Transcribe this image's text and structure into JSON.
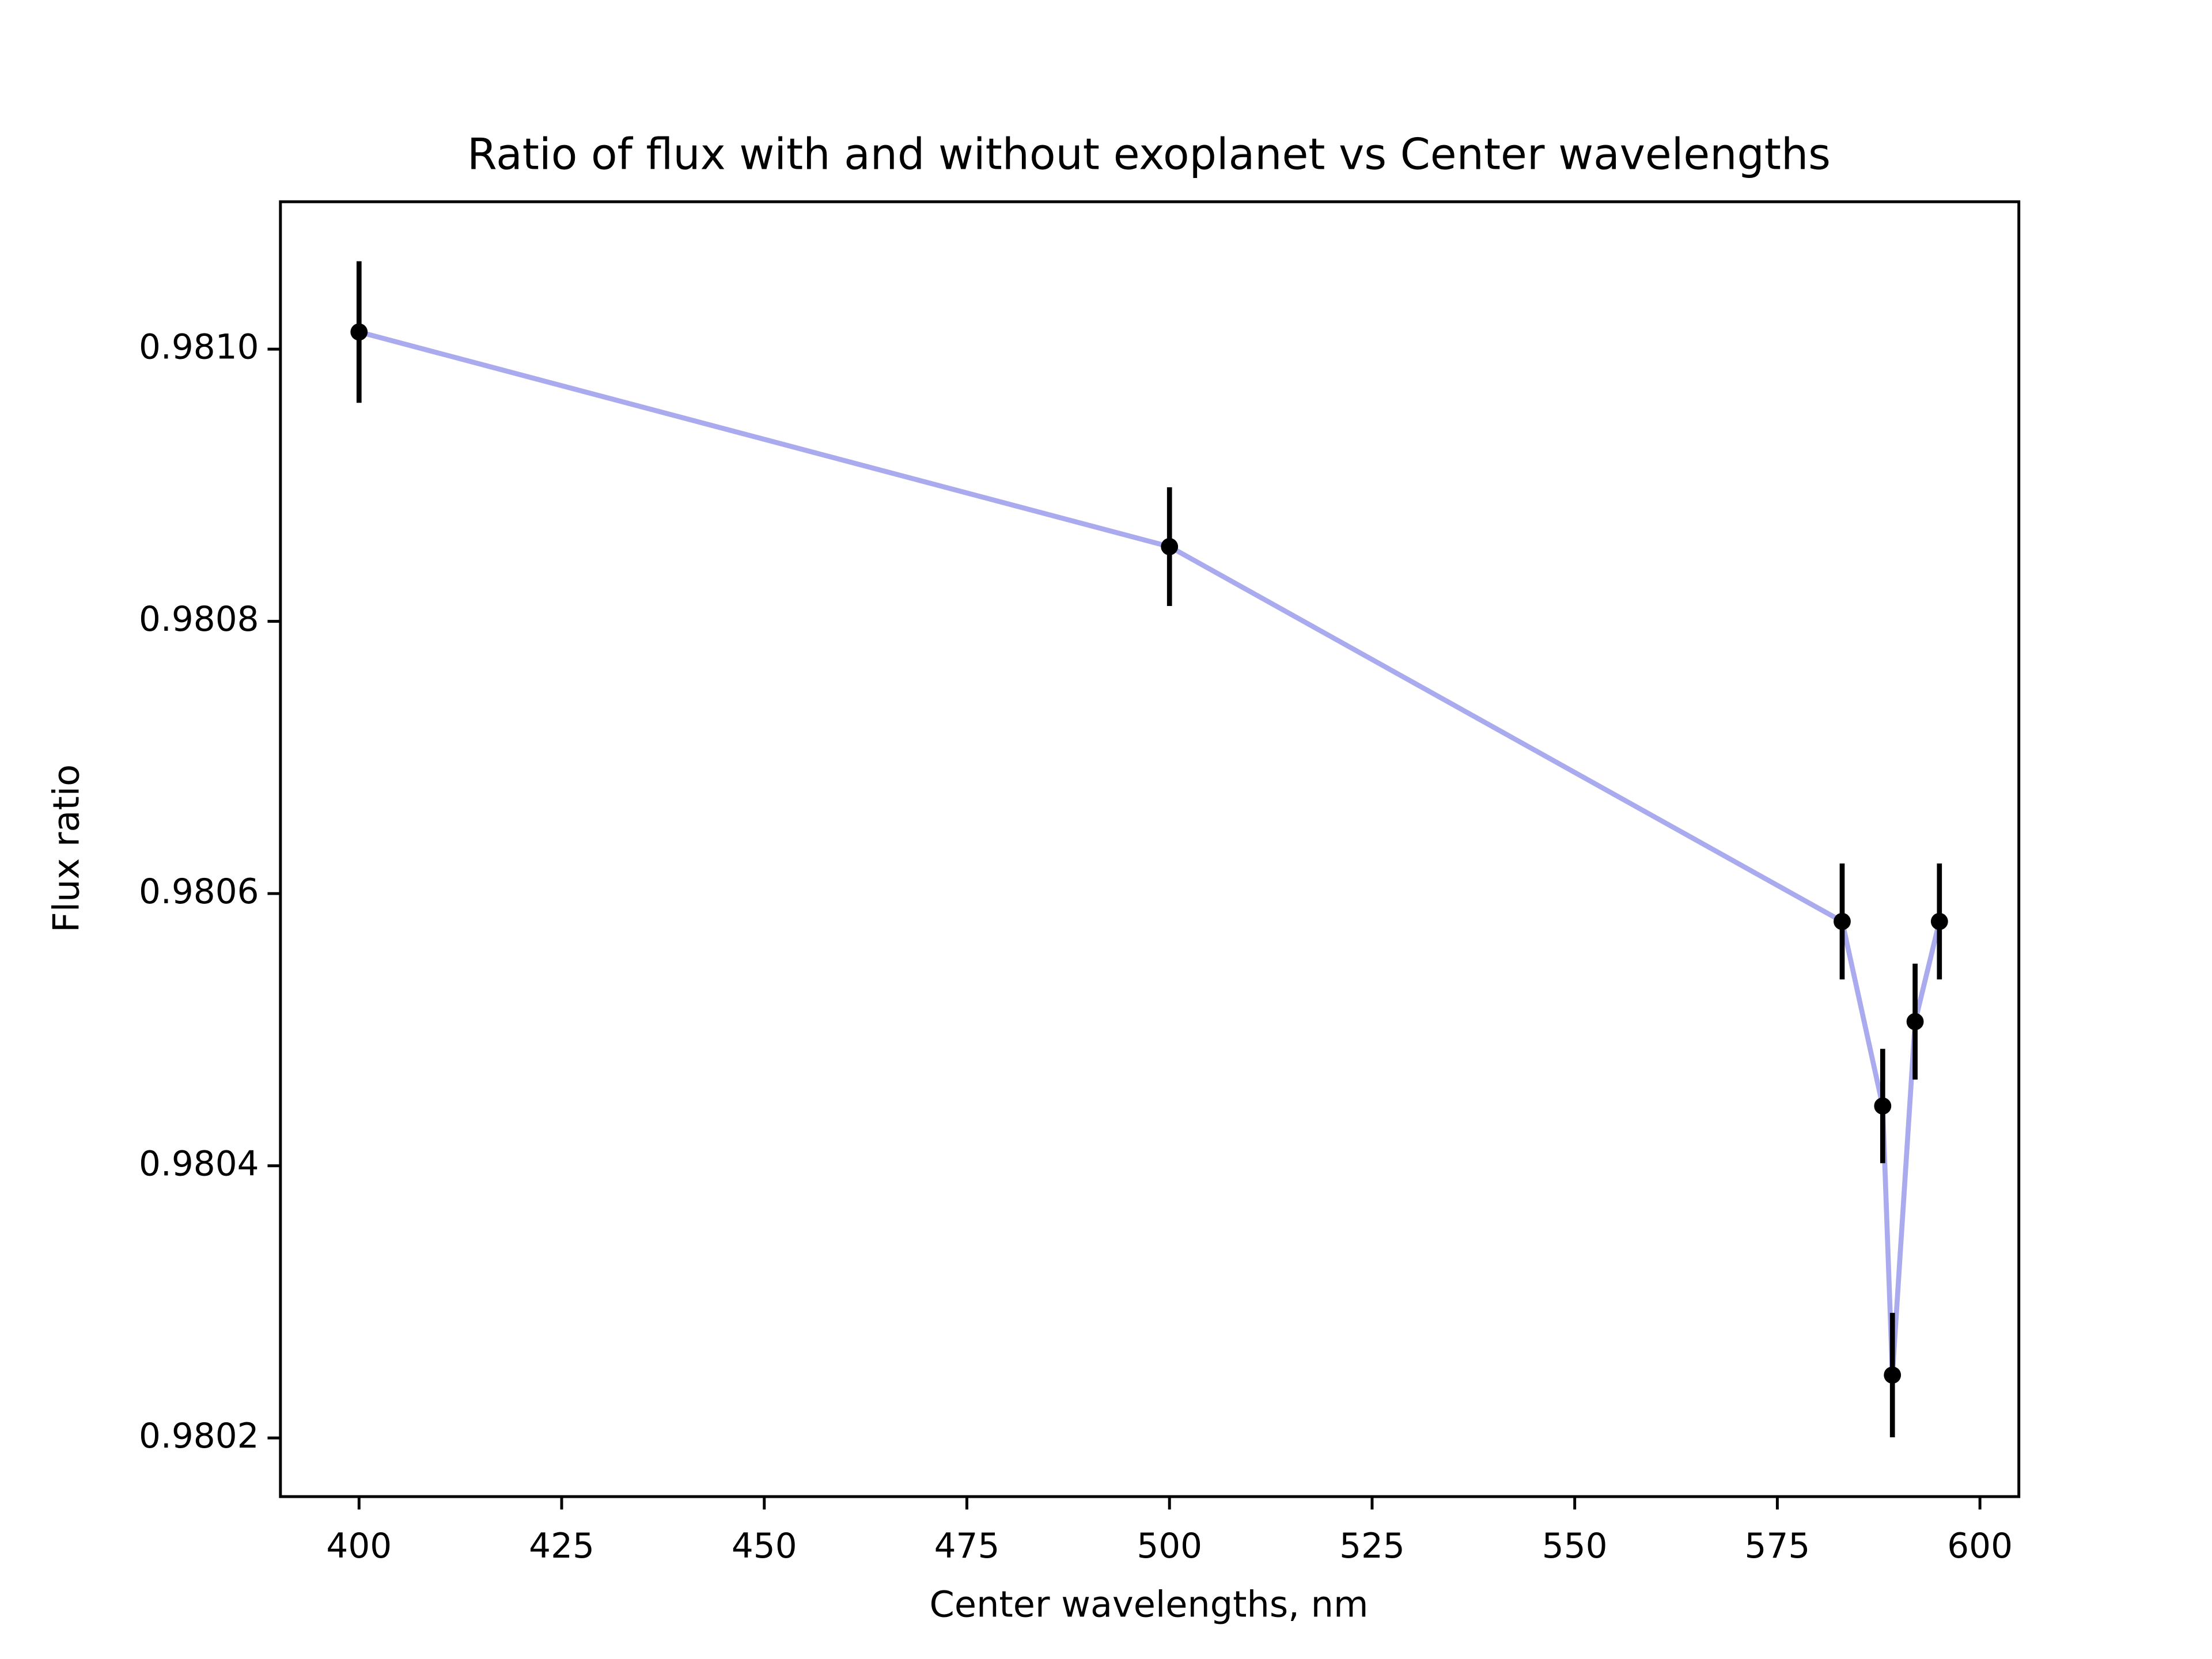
{
  "chart_data": {
    "type": "errorbar",
    "title": "Ratio of flux with and without exoplanet vs Center wavelengths",
    "x_label": "Center wavelengths, nm",
    "y_label": "Flux ratio",
    "x": [
      400,
      500,
      583,
      588,
      589.2,
      592,
      595
    ],
    "series": [
      {
        "values": [
          0.9810126,
          0.9808549,
          0.9805795,
          0.9804439,
          0.9802462,
          0.9805059,
          0.9805795
        ],
        "errors": [
          5.2e-05,
          4.36e-05,
          4.26e-05,
          4.2e-05,
          4.57e-05,
          4.26e-05,
          4.26e-05
        ],
        "color": "#aaaaee",
        "marker_color": "#000000"
      }
    ],
    "xlim": [
      390.3,
      604.8
    ],
    "ylim": [
      0.9801569,
      0.9811083
    ],
    "xticks": [
      400,
      425,
      450,
      475,
      500,
      525,
      550,
      575,
      600
    ],
    "yticks": [
      {
        "value": 0.9802,
        "label": "0.9802"
      },
      {
        "value": 0.9804,
        "label": "0.9804"
      },
      {
        "value": 0.9806,
        "label": "0.9806"
      },
      {
        "value": 0.9808,
        "label": "0.9808"
      },
      {
        "value": 0.981,
        "label": "0.9810"
      }
    ],
    "grid": false
  }
}
